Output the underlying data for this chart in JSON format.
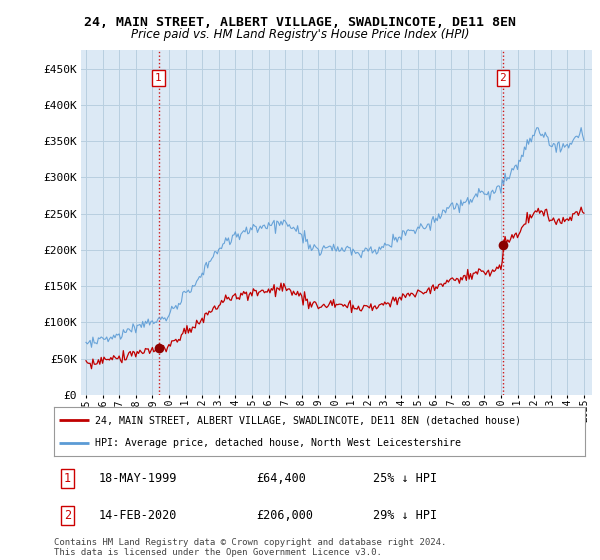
{
  "title_line1": "24, MAIN STREET, ALBERT VILLAGE, SWADLINCOTE, DE11 8EN",
  "title_line2": "Price paid vs. HM Land Registry's House Price Index (HPI)",
  "hpi_color": "#5b9bd5",
  "price_color": "#c00000",
  "vline_color": "#cc0000",
  "marker_color": "#8b0000",
  "bg_fill_color": "#dce9f5",
  "ylim": [
    0,
    475000
  ],
  "xlim_start": 1994.7,
  "xlim_end": 2025.5,
  "yticks": [
    0,
    50000,
    100000,
    150000,
    200000,
    250000,
    300000,
    350000,
    400000,
    450000
  ],
  "ytick_labels": [
    "£0",
    "£50K",
    "£100K",
    "£150K",
    "£200K",
    "£250K",
    "£300K",
    "£350K",
    "£400K",
    "£450K"
  ],
  "xticks": [
    1995,
    1996,
    1997,
    1998,
    1999,
    2000,
    2001,
    2002,
    2003,
    2004,
    2005,
    2006,
    2007,
    2008,
    2009,
    2010,
    2011,
    2012,
    2013,
    2014,
    2015,
    2016,
    2017,
    2018,
    2019,
    2020,
    2021,
    2022,
    2023,
    2024,
    2025
  ],
  "sale1_x": 1999.37,
  "sale1_y": 64400,
  "sale1_label": "1",
  "sale2_x": 2020.12,
  "sale2_y": 206000,
  "sale2_label": "2",
  "legend_line1": "24, MAIN STREET, ALBERT VILLAGE, SWADLINCOTE, DE11 8EN (detached house)",
  "legend_line2": "HPI: Average price, detached house, North West Leicestershire",
  "table_row1_num": "1",
  "table_row1_date": "18-MAY-1999",
  "table_row1_price": "£64,400",
  "table_row1_hpi": "25% ↓ HPI",
  "table_row2_num": "2",
  "table_row2_date": "14-FEB-2020",
  "table_row2_price": "£206,000",
  "table_row2_hpi": "29% ↓ HPI",
  "footnote": "Contains HM Land Registry data © Crown copyright and database right 2024.\nThis data is licensed under the Open Government Licence v3.0.",
  "bg_color": "#ffffff",
  "grid_color": "#b8cfe0"
}
